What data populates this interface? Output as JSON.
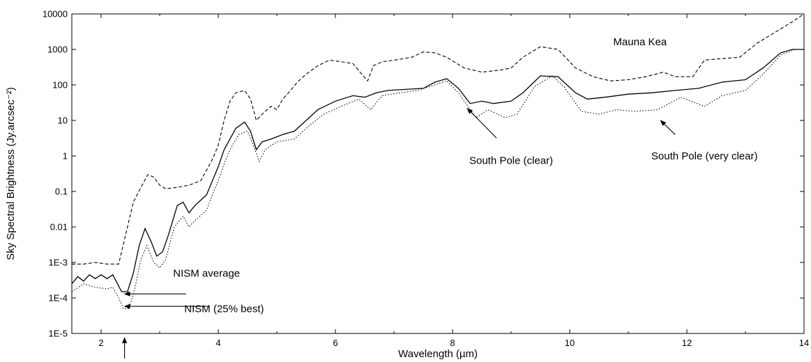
{
  "chart_data": {
    "type": "line",
    "title": "",
    "xlabel": "Wavelength (µm)",
    "ylabel": "Sky Spectral Brightness (Jy.arcsec⁻²)",
    "xlim": [
      1.5,
      14
    ],
    "ylim": [
      1e-05,
      10000
    ],
    "yscale": "log",
    "grid": false,
    "legend": "none",
    "x_ticks": [
      2,
      4,
      6,
      8,
      10,
      12,
      14
    ],
    "x_tick_labels": [
      "2",
      "4",
      "6",
      "8",
      "10",
      "12",
      "14"
    ],
    "y_ticks": [
      1e-05,
      0.0001,
      0.001,
      0.01,
      0.1,
      1,
      10,
      100,
      1000,
      10000
    ],
    "y_tick_labels": [
      "1E-5",
      "1E-4",
      "1E-3",
      "0.01",
      "0.1",
      "1",
      "10",
      "100",
      "1000",
      "10000"
    ],
    "series": [
      {
        "style": "dashed",
        "points": [
          [
            1.5,
            0.0009
          ],
          [
            1.7,
            0.0009
          ],
          [
            1.9,
            0.001
          ],
          [
            2.1,
            0.0009
          ],
          [
            2.3,
            0.0009
          ],
          [
            2.35,
            0.002
          ],
          [
            2.45,
            0.01
          ],
          [
            2.55,
            0.05
          ],
          [
            2.7,
            0.15
          ],
          [
            2.8,
            0.3
          ],
          [
            2.9,
            0.25
          ],
          [
            3.0,
            0.15
          ],
          [
            3.1,
            0.12
          ],
          [
            3.3,
            0.13
          ],
          [
            3.5,
            0.15
          ],
          [
            3.7,
            0.2
          ],
          [
            3.8,
            0.4
          ],
          [
            3.9,
            0.8
          ],
          [
            4.0,
            2
          ],
          [
            4.1,
            10
          ],
          [
            4.2,
            35
          ],
          [
            4.3,
            60
          ],
          [
            4.45,
            70
          ],
          [
            4.55,
            40
          ],
          [
            4.65,
            10
          ],
          [
            4.75,
            15
          ],
          [
            4.9,
            25
          ],
          [
            5.0,
            20
          ],
          [
            5.1,
            40
          ],
          [
            5.2,
            60
          ],
          [
            5.35,
            120
          ],
          [
            5.5,
            200
          ],
          [
            5.7,
            350
          ],
          [
            5.9,
            500
          ],
          [
            6.1,
            450
          ],
          [
            6.3,
            400
          ],
          [
            6.45,
            200
          ],
          [
            6.55,
            130
          ],
          [
            6.65,
            350
          ],
          [
            6.8,
            450
          ],
          [
            7.0,
            500
          ],
          [
            7.3,
            600
          ],
          [
            7.5,
            850
          ],
          [
            7.7,
            800
          ],
          [
            7.9,
            600
          ],
          [
            8.2,
            300
          ],
          [
            8.5,
            230
          ],
          [
            8.8,
            260
          ],
          [
            9.0,
            300
          ],
          [
            9.2,
            600
          ],
          [
            9.5,
            1200
          ],
          [
            9.8,
            1000
          ],
          [
            10.1,
            300
          ],
          [
            10.4,
            170
          ],
          [
            10.7,
            130
          ],
          [
            11.0,
            140
          ],
          [
            11.3,
            170
          ],
          [
            11.6,
            230
          ],
          [
            11.8,
            170
          ],
          [
            12.1,
            170
          ],
          [
            12.3,
            500
          ],
          [
            12.6,
            550
          ],
          [
            12.9,
            600
          ],
          [
            13.2,
            1500
          ],
          [
            13.5,
            3000
          ],
          [
            13.8,
            6000
          ],
          [
            14.0,
            10000
          ]
        ]
      },
      {
        "style": "solid",
        "points": [
          [
            1.5,
            0.00025
          ],
          [
            1.6,
            0.0004
          ],
          [
            1.7,
            0.0003
          ],
          [
            1.8,
            0.00045
          ],
          [
            1.9,
            0.00035
          ],
          [
            2.0,
            0.00045
          ],
          [
            2.1,
            0.00035
          ],
          [
            2.2,
            0.00045
          ],
          [
            2.28,
            0.00025
          ],
          [
            2.35,
            0.00015
          ],
          [
            2.45,
            0.00015
          ],
          [
            2.55,
            0.0005
          ],
          [
            2.65,
            0.003
          ],
          [
            2.75,
            0.009
          ],
          [
            2.85,
            0.004
          ],
          [
            2.95,
            0.0015
          ],
          [
            3.05,
            0.002
          ],
          [
            3.15,
            0.006
          ],
          [
            3.3,
            0.04
          ],
          [
            3.4,
            0.05
          ],
          [
            3.5,
            0.025
          ],
          [
            3.6,
            0.04
          ],
          [
            3.8,
            0.08
          ],
          [
            3.9,
            0.2
          ],
          [
            4.0,
            0.5
          ],
          [
            4.1,
            1.5
          ],
          [
            4.2,
            3
          ],
          [
            4.3,
            6
          ],
          [
            4.45,
            9
          ],
          [
            4.55,
            5
          ],
          [
            4.65,
            1.5
          ],
          [
            4.75,
            2.5
          ],
          [
            4.9,
            3
          ],
          [
            5.1,
            4
          ],
          [
            5.3,
            5
          ],
          [
            5.5,
            10
          ],
          [
            5.7,
            20
          ],
          [
            6.0,
            35
          ],
          [
            6.3,
            50
          ],
          [
            6.5,
            45
          ],
          [
            6.7,
            60
          ],
          [
            6.9,
            70
          ],
          [
            7.2,
            75
          ],
          [
            7.5,
            80
          ],
          [
            7.7,
            120
          ],
          [
            7.9,
            150
          ],
          [
            8.1,
            80
          ],
          [
            8.3,
            30
          ],
          [
            8.5,
            35
          ],
          [
            8.7,
            30
          ],
          [
            9.0,
            35
          ],
          [
            9.2,
            60
          ],
          [
            9.5,
            180
          ],
          [
            9.8,
            170
          ],
          [
            10.1,
            60
          ],
          [
            10.3,
            40
          ],
          [
            10.6,
            45
          ],
          [
            11.0,
            55
          ],
          [
            11.4,
            60
          ],
          [
            11.8,
            70
          ],
          [
            12.2,
            80
          ],
          [
            12.6,
            120
          ],
          [
            13.0,
            140
          ],
          [
            13.3,
            300
          ],
          [
            13.6,
            800
          ],
          [
            13.8,
            1000
          ],
          [
            14.0,
            1000
          ]
        ]
      },
      {
        "style": "dotted",
        "points": [
          [
            1.5,
            0.00015
          ],
          [
            1.7,
            0.00025
          ],
          [
            1.9,
            0.0002
          ],
          [
            2.1,
            0.00018
          ],
          [
            2.2,
            0.0002
          ],
          [
            2.3,
            0.0001
          ],
          [
            2.38,
            5e-05
          ],
          [
            2.48,
            5e-05
          ],
          [
            2.58,
            0.0002
          ],
          [
            2.68,
            0.0012
          ],
          [
            2.78,
            0.003
          ],
          [
            2.9,
            0.001
          ],
          [
            3.0,
            0.0007
          ],
          [
            3.1,
            0.0012
          ],
          [
            3.25,
            0.01
          ],
          [
            3.4,
            0.02
          ],
          [
            3.5,
            0.01
          ],
          [
            3.6,
            0.015
          ],
          [
            3.8,
            0.03
          ],
          [
            3.9,
            0.08
          ],
          [
            4.0,
            0.2
          ],
          [
            4.1,
            0.6
          ],
          [
            4.2,
            1.5
          ],
          [
            4.35,
            4
          ],
          [
            4.5,
            5
          ],
          [
            4.6,
            2
          ],
          [
            4.7,
            0.7
          ],
          [
            4.8,
            1.5
          ],
          [
            5.0,
            2.5
          ],
          [
            5.3,
            3
          ],
          [
            5.5,
            6
          ],
          [
            5.8,
            15
          ],
          [
            6.1,
            25
          ],
          [
            6.4,
            40
          ],
          [
            6.6,
            20
          ],
          [
            6.8,
            50
          ],
          [
            7.1,
            60
          ],
          [
            7.4,
            70
          ],
          [
            7.7,
            100
          ],
          [
            7.9,
            130
          ],
          [
            8.1,
            60
          ],
          [
            8.4,
            12
          ],
          [
            8.6,
            20
          ],
          [
            8.9,
            12
          ],
          [
            9.1,
            15
          ],
          [
            9.4,
            90
          ],
          [
            9.7,
            180
          ],
          [
            9.9,
            90
          ],
          [
            10.2,
            18
          ],
          [
            10.5,
            15
          ],
          [
            10.8,
            20
          ],
          [
            11.1,
            18
          ],
          [
            11.5,
            20
          ],
          [
            11.9,
            45
          ],
          [
            12.3,
            25
          ],
          [
            12.6,
            50
          ],
          [
            13.0,
            70
          ],
          [
            13.3,
            200
          ],
          [
            13.6,
            700
          ],
          [
            13.85,
            1000
          ],
          [
            14.0,
            1000
          ]
        ]
      }
    ],
    "annotations": [
      {
        "id": "mauna-kea",
        "text": "Mauna Kea",
        "x": 11.2,
        "y": 1300
      },
      {
        "id": "south-pole-clear",
        "text": "South Pole (clear)",
        "x": 9.0,
        "y": 0.6,
        "arrow_from": [
          8.75,
          3.2
        ],
        "arrow_to": [
          8.25,
          22
        ]
      },
      {
        "id": "south-pole-very-clear",
        "text": "South Pole (very clear)",
        "x": 12.3,
        "y": 0.8,
        "arrow_from": [
          11.8,
          4.0
        ],
        "arrow_to": [
          11.55,
          10
        ]
      },
      {
        "id": "nism-average",
        "text": "NISM average",
        "x": 3.8,
        "y": 0.0004,
        "arrow_from": [
          3.45,
          0.00013
        ],
        "arrow_to": [
          2.4,
          0.00013
        ]
      },
      {
        "id": "nism-25-best",
        "text": "NISM (25% best)",
        "x": 4.1,
        "y": 4e-05,
        "arrow_from": [
          3.85,
          5.8e-05
        ],
        "arrow_to": [
          2.4,
          5.8e-05
        ]
      }
    ]
  }
}
